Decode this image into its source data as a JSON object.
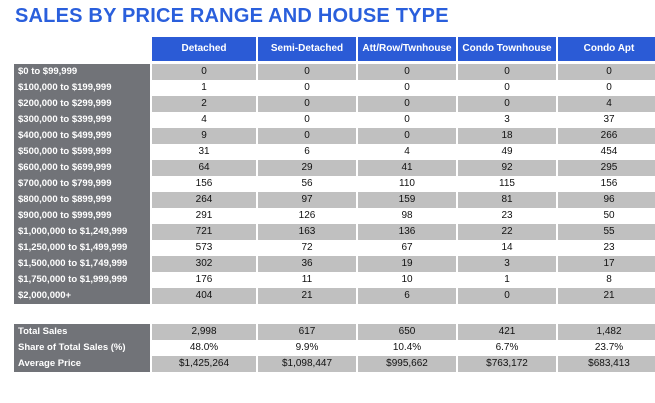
{
  "page": {
    "title": "SALES BY PRICE RANGE AND HOUSE TYPE"
  },
  "columns": [
    "Detached",
    "Semi-Detached",
    "Att/Row/Twnhouse",
    "Condo Townhouse",
    "Condo Apt"
  ],
  "rows": [
    {
      "label": "$0 to $99,999",
      "values": [
        "0",
        "0",
        "0",
        "0",
        "0"
      ]
    },
    {
      "label": "$100,000 to $199,999",
      "values": [
        "1",
        "0",
        "0",
        "0",
        "0"
      ]
    },
    {
      "label": "$200,000 to $299,999",
      "values": [
        "2",
        "0",
        "0",
        "0",
        "4"
      ]
    },
    {
      "label": "$300,000 to $399,999",
      "values": [
        "4",
        "0",
        "0",
        "3",
        "37"
      ]
    },
    {
      "label": "$400,000 to $499,999",
      "values": [
        "9",
        "0",
        "0",
        "18",
        "266"
      ]
    },
    {
      "label": "$500,000 to $599,999",
      "values": [
        "31",
        "6",
        "4",
        "49",
        "454"
      ]
    },
    {
      "label": "$600,000 to $699,999",
      "values": [
        "64",
        "29",
        "41",
        "92",
        "295"
      ]
    },
    {
      "label": "$700,000 to $799,999",
      "values": [
        "156",
        "56",
        "110",
        "115",
        "156"
      ]
    },
    {
      "label": "$800,000 to $899,999",
      "values": [
        "264",
        "97",
        "159",
        "81",
        "96"
      ]
    },
    {
      "label": "$900,000 to $999,999",
      "values": [
        "291",
        "126",
        "98",
        "23",
        "50"
      ]
    },
    {
      "label": "$1,000,000 to $1,249,999",
      "values": [
        "721",
        "163",
        "136",
        "22",
        "55"
      ]
    },
    {
      "label": "$1,250,000 to $1,499,999",
      "values": [
        "573",
        "72",
        "67",
        "14",
        "23"
      ]
    },
    {
      "label": "$1,500,000 to $1,749,999",
      "values": [
        "302",
        "36",
        "19",
        "3",
        "17"
      ]
    },
    {
      "label": "$1,750,000 to $1,999,999",
      "values": [
        "176",
        "11",
        "10",
        "1",
        "8"
      ]
    },
    {
      "label": "$2,000,000+",
      "values": [
        "404",
        "21",
        "6",
        "0",
        "21"
      ]
    }
  ],
  "summary": [
    {
      "label": "Total Sales",
      "values": [
        "2,998",
        "617",
        "650",
        "421",
        "1,482"
      ]
    },
    {
      "label": "Share of Total Sales (%)",
      "values": [
        "48.0%",
        "9.9%",
        "10.4%",
        "6.7%",
        "23.7%"
      ]
    },
    {
      "label": "Average Price",
      "values": [
        "$1,425,264",
        "$1,098,447",
        "$995,662",
        "$763,172",
        "$683,413"
      ]
    }
  ],
  "colors": {
    "title": "#2a5fdc",
    "header_bg": "#2b5bd6",
    "label_bg": "#717378",
    "band_gray": "#c0c0c0",
    "band_white": "#ffffff"
  }
}
